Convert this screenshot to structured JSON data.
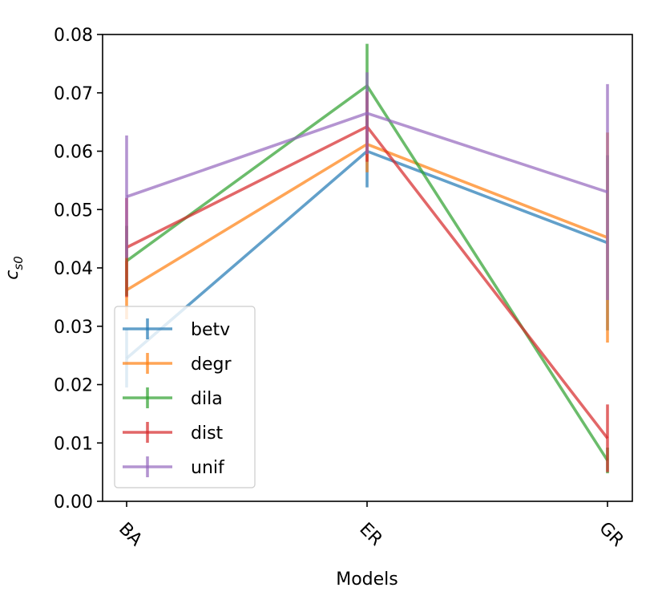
{
  "chart_data": {
    "type": "line",
    "title": "",
    "xlabel": "Models",
    "ylabel": "c",
    "ylabel_subscript": "s0",
    "categories": [
      "BA",
      "ER",
      "GR"
    ],
    "ylim": [
      0,
      0.08
    ],
    "yticks": [
      0.0,
      0.01,
      0.02,
      0.03,
      0.04,
      0.05,
      0.06,
      0.07,
      0.08
    ],
    "ytick_labels": [
      "0.00",
      "0.01",
      "0.02",
      "0.03",
      "0.04",
      "0.05",
      "0.06",
      "0.07",
      "0.08"
    ],
    "legend_position": "lower-left",
    "series": [
      {
        "name": "betv",
        "color": "#1f77b4",
        "values": [
          0.0245,
          0.06,
          0.0443
        ],
        "errors": [
          0.005,
          0.0062,
          0.015
        ]
      },
      {
        "name": "degr",
        "color": "#ff7f0e",
        "values": [
          0.0362,
          0.0612,
          0.0452
        ],
        "errors": [
          0.005,
          0.0048,
          0.018
        ]
      },
      {
        "name": "dila",
        "color": "#2ca02c",
        "values": [
          0.0412,
          0.0712,
          0.007
        ],
        "errors": [
          0.006,
          0.0072,
          0.0022
        ]
      },
      {
        "name": "dist",
        "color": "#d62728",
        "values": [
          0.0435,
          0.0642,
          0.0108
        ],
        "errors": [
          0.0085,
          0.006,
          0.0058
        ]
      },
      {
        "name": "unif",
        "color": "#9467bd",
        "values": [
          0.0522,
          0.0665,
          0.053
        ],
        "errors": [
          0.0105,
          0.007,
          0.0185
        ]
      }
    ]
  }
}
